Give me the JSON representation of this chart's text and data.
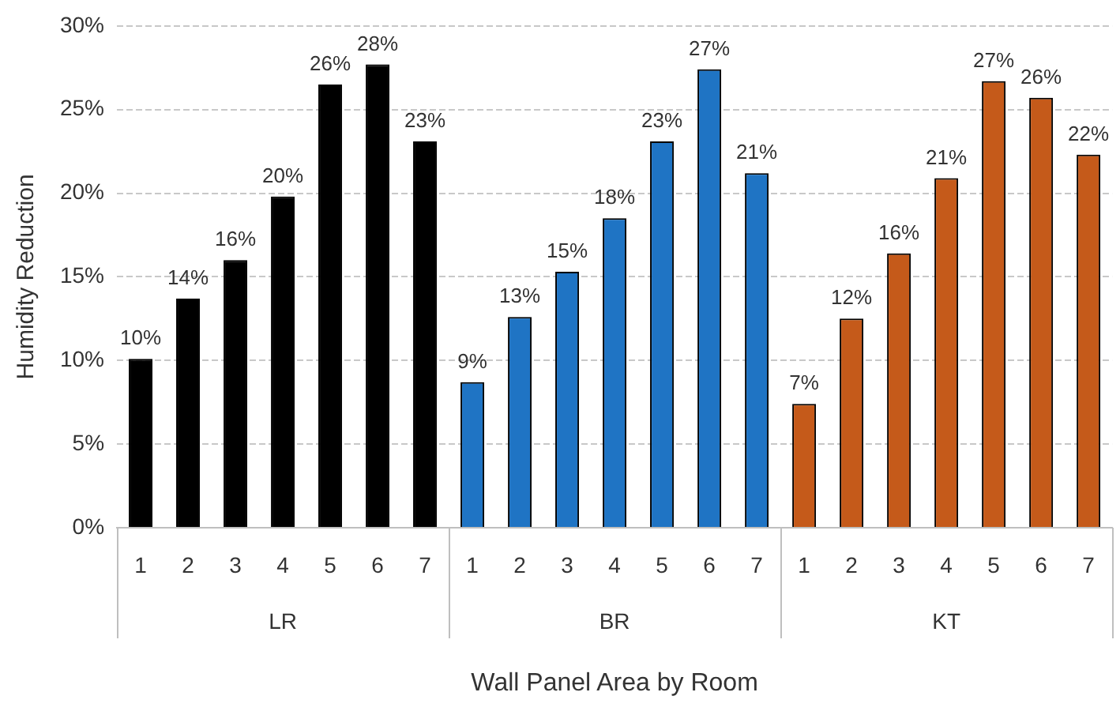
{
  "chart_data": {
    "type": "bar",
    "xlabel": "Wall Panel Area by Room",
    "ylabel": "Humidity Reduction",
    "categories": [
      "1",
      "2",
      "3",
      "4",
      "5",
      "6",
      "7",
      "1",
      "2",
      "3",
      "4",
      "5",
      "6",
      "7",
      "1",
      "2",
      "3",
      "4",
      "5",
      "6",
      "7"
    ],
    "values": [
      10.1,
      13.7,
      16.0,
      19.8,
      26.5,
      27.7,
      23.1,
      8.7,
      12.6,
      15.3,
      18.5,
      23.1,
      27.4,
      21.2,
      7.4,
      12.5,
      16.4,
      20.9,
      26.7,
      25.7,
      22.3
    ],
    "colors": [
      "#000000",
      "#000000",
      "#000000",
      "#000000",
      "#000000",
      "#000000",
      "#000000",
      "#1f74c4",
      "#1f74c4",
      "#1f74c4",
      "#1f74c4",
      "#1f74c4",
      "#1f74c4",
      "#1f74c4",
      "#c55a1a",
      "#c55a1a",
      "#c55a1a",
      "#c55a1a",
      "#c55a1a",
      "#c55a1a",
      "#c55a1a"
    ],
    "value_labels": [
      "10%",
      "14%",
      "16%",
      "20%",
      "26%",
      "28%",
      "23%",
      "9%",
      "13%",
      "15%",
      "18%",
      "23%",
      "27%",
      "21%",
      "7%",
      "12%",
      "16%",
      "21%",
      "27%",
      "26%",
      "22%"
    ],
    "annotations": [
      "LR",
      "BR",
      "KT"
    ],
    "ylim": [
      0,
      30
    ],
    "yticks": [
      {
        "value": 0,
        "label": "0%"
      },
      {
        "value": 5,
        "label": "5%"
      },
      {
        "value": 10,
        "label": "10%"
      },
      {
        "value": 15,
        "label": "15%"
      },
      {
        "value": 20,
        "label": "20%"
      },
      {
        "value": 25,
        "label": "25%"
      },
      {
        "value": 30,
        "label": "30%"
      }
    ],
    "grid": "y",
    "legend": false
  }
}
